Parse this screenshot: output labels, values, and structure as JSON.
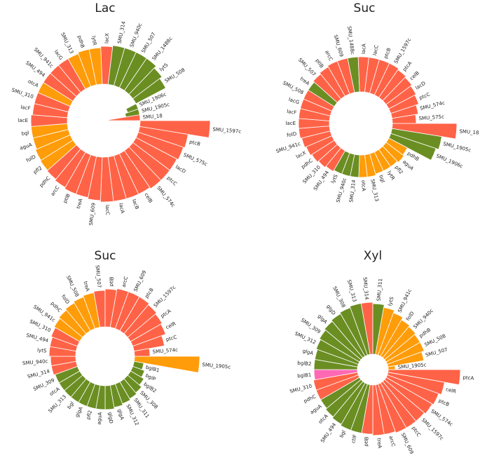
{
  "chart_data": [
    {
      "type": "radial-bar",
      "title": "Lac",
      "categories": [
        "SMU_1597c",
        "ptcB",
        "SMU_575c",
        "lacD",
        "ptcC",
        "SMU_574c",
        "celB",
        "lacB",
        "lacA",
        "lacC",
        "SMU_609",
        "treA",
        "ptlB",
        "arcC",
        "pdhC",
        "pfl2",
        "folD",
        "aguA",
        "bgl",
        "lacE",
        "lacF",
        "SMU_310",
        "otcA",
        "SMU_494",
        "SMU_941c",
        "lacG",
        "SMU_313",
        "pdhB",
        "lytR",
        "lacX",
        "SMU_314",
        "SMU_940c",
        "SMU_507",
        "SMU_1488c",
        "lytS",
        "SMU_508",
        "SMU_1906c",
        "SMU_1905c",
        "SMU_18"
      ],
      "values": [
        100,
        70,
        68,
        66,
        66,
        66,
        64,
        64,
        64,
        64,
        62,
        60,
        60,
        58,
        56,
        55,
        54,
        52,
        52,
        52,
        50,
        50,
        50,
        50,
        50,
        50,
        50,
        52,
        52,
        54,
        56,
        56,
        56,
        56,
        52,
        48,
        -16,
        -20,
        -45
      ],
      "colors": [
        "#ff6347",
        "#ff6347",
        "#ff6347",
        "#ff6347",
        "#ff6347",
        "#ff6347",
        "#ff6347",
        "#ff6347",
        "#ff6347",
        "#ff6347",
        "#ff6347",
        "#ff6347",
        "#ff6347",
        "#ff6347",
        "#ff6347",
        "#ff9c0a",
        "#ff9c0a",
        "#ff9c0a",
        "#ff9c0a",
        "#ff6347",
        "#ff6347",
        "#ff6347",
        "#ff9c0a",
        "#ff6347",
        "#ff6347",
        "#ff6347",
        "#ff9c0a",
        "#ff9c0a",
        "#ff9c0a",
        "#ff6347",
        "#6b8e23",
        "#6b8e23",
        "#6b8e23",
        "#6b8e23",
        "#6b8e23",
        "#6b8e23",
        "#6b8e23",
        "#6b8e23",
        "#ff6347"
      ]
    },
    {
      "type": "radial-bar",
      "title": "Suc",
      "categories": [
        "SMU_18",
        "SMU_1905c",
        "SMU_1906c",
        "pdhB",
        "aguA",
        "pfl2",
        "lytR",
        "bgl",
        "SMU_313",
        "otcA",
        "SMU_314",
        "SMU_940c",
        "lytS",
        "SMU_494",
        "SMU_310",
        "pdhC",
        "lacX",
        "SMU_941c",
        "folD",
        "lacE",
        "lacF",
        "lacG",
        "SMU_508",
        "treA",
        "SMU_507",
        "ptlB",
        "arcC",
        "SMU_609",
        "SMU_1488c",
        "lacA",
        "lacC",
        "ptcB",
        "SMU_1597c",
        "ptcA",
        "celB",
        "lacD",
        "ptcC",
        "SMU_574c",
        "SMU_575c"
      ],
      "values": [
        92,
        72,
        68,
        30,
        32,
        30,
        30,
        30,
        32,
        32,
        32,
        32,
        32,
        34,
        36,
        38,
        40,
        42,
        44,
        44,
        44,
        44,
        44,
        44,
        46,
        48,
        50,
        50,
        50,
        50,
        50,
        50,
        50,
        48,
        46,
        44,
        42,
        38,
        34
      ],
      "colors": [
        "#ff6347",
        "#6b8e23",
        "#6b8e23",
        "#ff9c0a",
        "#ff9c0a",
        "#ff9c0a",
        "#ff9c0a",
        "#ff9c0a",
        "#ff9c0a",
        "#ff9c0a",
        "#6b8e23",
        "#6b8e23",
        "#6b8e23",
        "#ff6347",
        "#ff6347",
        "#ff6347",
        "#ff6347",
        "#ff6347",
        "#ff6347",
        "#ff6347",
        "#ff6347",
        "#ff6347",
        "#ff6347",
        "#6b8e23",
        "#ff6347",
        "#ff6347",
        "#ff6347",
        "#ff6347",
        "#6b8e23",
        "#ff6347",
        "#ff6347",
        "#ff6347",
        "#ff6347",
        "#ff6347",
        "#ff6347",
        "#ff6347",
        "#ff6347",
        "#ff6347",
        "#ff6347"
      ]
    },
    {
      "type": "radial-bar",
      "title": "Suc",
      "categories": [
        "SMU_1905c",
        "bglB1",
        "bglP",
        "bglB2",
        "SMU_308",
        "SMU_311",
        "SMU_312",
        "glgA",
        "glgD",
        "aguA",
        "pfl2",
        "glgA",
        "bgl",
        "SMU_313",
        "otcA",
        "SMU_309",
        "SMU_314",
        "SMU_940c",
        "lytS",
        "SMU_494",
        "SMU_310",
        "SMU_941c",
        "pdhC",
        "folD",
        "SMU_508",
        "treA",
        "SMU_507",
        "ptlB",
        "arcC",
        "SMU_609",
        "ptcB",
        "SMU_1597c",
        "ptcA",
        "celR",
        "ptcC",
        "SMU_574c"
      ],
      "values": [
        93,
        14,
        18,
        22,
        26,
        28,
        30,
        32,
        34,
        34,
        34,
        34,
        34,
        34,
        34,
        34,
        36,
        36,
        38,
        38,
        40,
        42,
        44,
        46,
        48,
        50,
        52,
        54,
        56,
        56,
        56,
        54,
        52,
        50,
        44,
        22
      ],
      "colors": [
        "#ff9c0a",
        "#6b8e23",
        "#6b8e23",
        "#6b8e23",
        "#6b8e23",
        "#6b8e23",
        "#6b8e23",
        "#6b8e23",
        "#6b8e23",
        "#6b8e23",
        "#6b8e23",
        "#6b8e23",
        "#6b8e23",
        "#6b8e23",
        "#6b8e23",
        "#6b8e23",
        "#ff6347",
        "#ff6347",
        "#ff6347",
        "#ff6347",
        "#ff6347",
        "#ff9c0a",
        "#ff9c0a",
        "#ff9c0a",
        "#ff9c0a",
        "#ff9c0a",
        "#ff6347",
        "#ff6347",
        "#ff6347",
        "#ff6347",
        "#ff6347",
        "#ff6347",
        "#ff6347",
        "#ff6347",
        "#ff6347",
        "#ff6347"
      ]
    },
    {
      "type": "radial-bar",
      "title": "Xyl",
      "categories": [
        "ptcA",
        "celR",
        "ptcB",
        "SMU_574c",
        "SMU_1597c",
        "ptcC",
        "SMU_609",
        "arcC",
        "treA",
        "ptlB",
        "ctlF",
        "bgl",
        "SMU_494",
        "otcA",
        "aguA",
        "pdhC",
        "SMU_310",
        "bglB1",
        "bglB2",
        "glgA",
        "SMU_312",
        "SMU_309",
        "glgA",
        "glgD",
        "SMU_308",
        "SMU_313",
        "SMU_314",
        "SMU_311",
        "lytS",
        "SMU_941c",
        "folD",
        "SMU_940c",
        "pdhB",
        "SMU_508",
        "SMU_507",
        "SMU_1905c"
      ],
      "values": [
        103,
        82,
        78,
        76,
        74,
        74,
        74,
        72,
        72,
        70,
        70,
        70,
        68,
        66,
        64,
        64,
        64,
        62,
        62,
        62,
        64,
        66,
        68,
        70,
        72,
        74,
        74,
        72,
        68,
        64,
        60,
        58,
        56,
        56,
        52,
        10
      ],
      "colors": [
        "#ff6347",
        "#ff6347",
        "#ff6347",
        "#ff6347",
        "#ff6347",
        "#ff6347",
        "#ff6347",
        "#ff6347",
        "#ff6347",
        "#ff6347",
        "#6b8e23",
        "#6b8e23",
        "#6b8e23",
        "#6b8e23",
        "#6b8e23",
        "#ff6347",
        "#ff6347",
        "#ff69b4",
        "#6b8e23",
        "#6b8e23",
        "#6b8e23",
        "#6b8e23",
        "#6b8e23",
        "#6b8e23",
        "#6b8e23",
        "#6b8e23",
        "#ff6347",
        "#6b8e23",
        "#ff9c0a",
        "#ff9c0a",
        "#ff9c0a",
        "#ff9c0a",
        "#ff9c0a",
        "#ff9c0a",
        "#ff9c0a",
        "#ff9c0a"
      ]
    }
  ]
}
